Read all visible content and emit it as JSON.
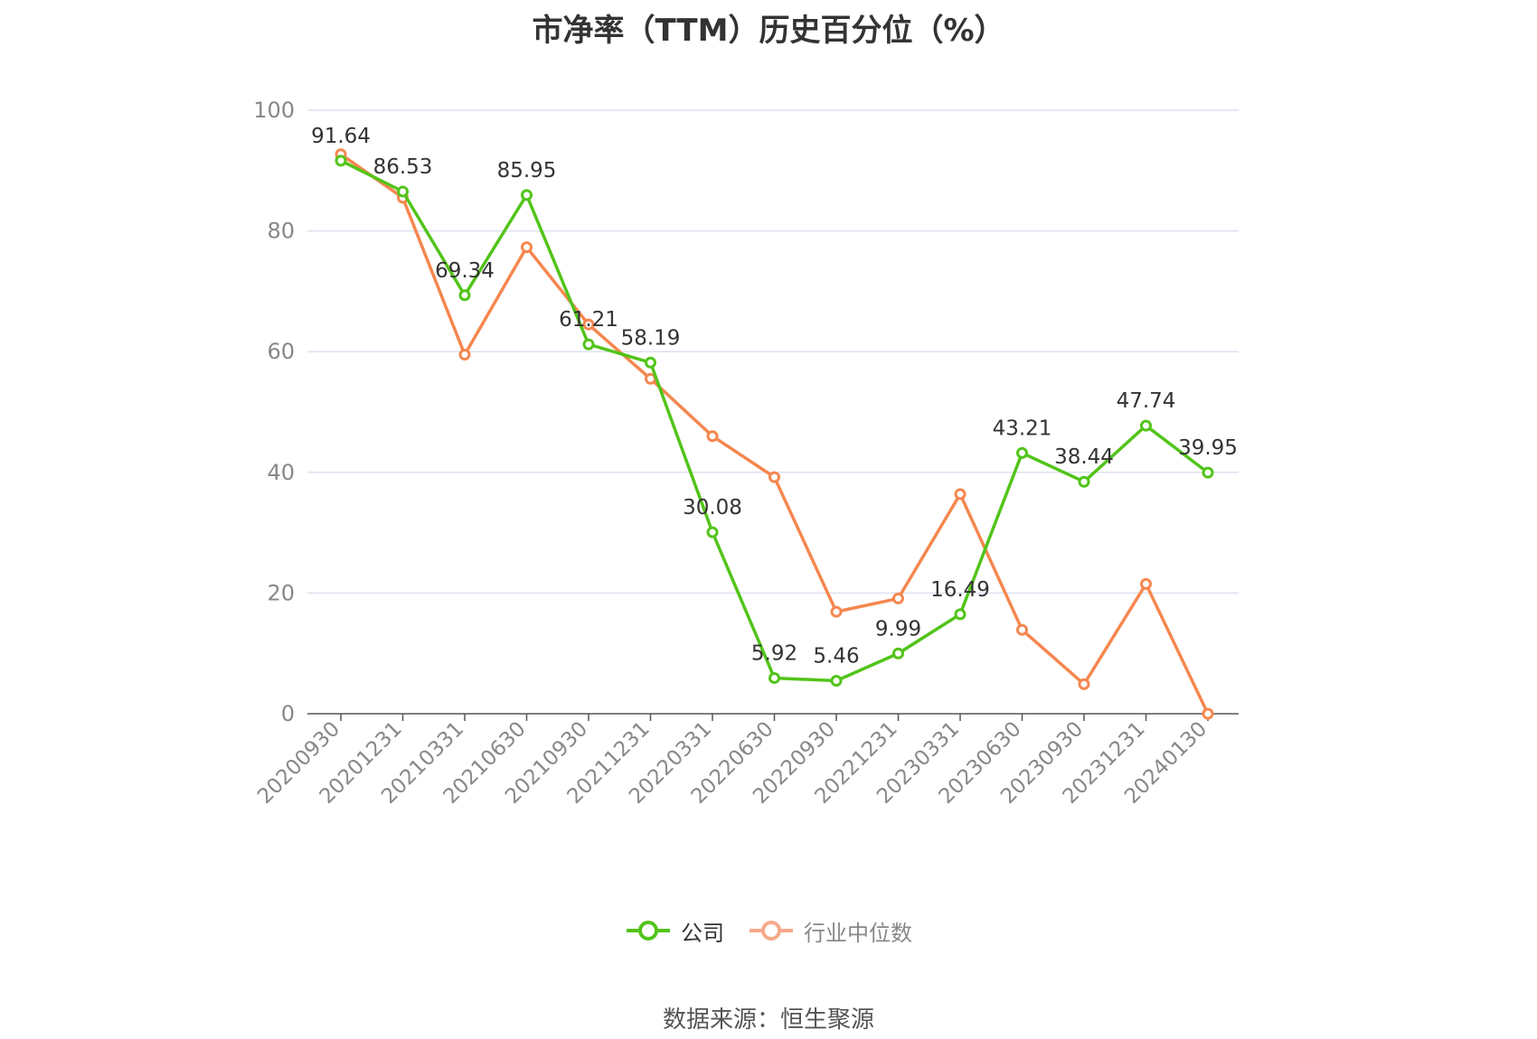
{
  "title": "市净率（TTM）历史百分位（%）",
  "source_text": "数据来源：恒生聚源",
  "colors": {
    "company": "#52c41a",
    "industry": "#f5874f",
    "grid": "#dde2ef",
    "axis": "#555555",
    "tick_text": "#888888",
    "label_text": "#333333"
  },
  "legend": [
    {
      "name": "公司",
      "color": "#52c41a",
      "icon": "circle-line-marker-icon"
    },
    {
      "name": "行业中位数",
      "color": "#f5a98a",
      "icon": "circle-line-marker-icon"
    }
  ],
  "chart_data": {
    "type": "line",
    "title": "市净率（TTM）历史百分位（%）",
    "xlabel": "",
    "ylabel": "",
    "ylim": [
      0,
      100
    ],
    "yticks": [
      0,
      20,
      40,
      60,
      80,
      100
    ],
    "grid": true,
    "legend_position": "bottom",
    "categories": [
      "20200930",
      "20201231",
      "20210331",
      "20210630",
      "20210930",
      "20211231",
      "20220331",
      "20220630",
      "20220930",
      "20221231",
      "20230331",
      "20230630",
      "20230930",
      "20231231",
      "20240130"
    ],
    "series": [
      {
        "name": "公司",
        "values": [
          91.64,
          86.53,
          69.34,
          85.95,
          61.21,
          58.19,
          30.08,
          5.92,
          5.46,
          9.99,
          16.49,
          43.21,
          38.44,
          47.74,
          39.95
        ],
        "data_labels": [
          "91.64",
          "86.53",
          "69.34",
          "85.95",
          "61.21",
          "58.19",
          "30.08",
          "5.92",
          "5.46",
          "9.99",
          "16.49",
          "43.21",
          "38.44",
          "47.74",
          "39.95"
        ]
      },
      {
        "name": "行业中位数",
        "values": [
          92.7,
          85.5,
          59.5,
          77.3,
          64.5,
          55.5,
          46.0,
          39.2,
          16.9,
          19.1,
          36.4,
          13.9,
          4.9,
          21.5,
          0.0
        ]
      }
    ]
  }
}
